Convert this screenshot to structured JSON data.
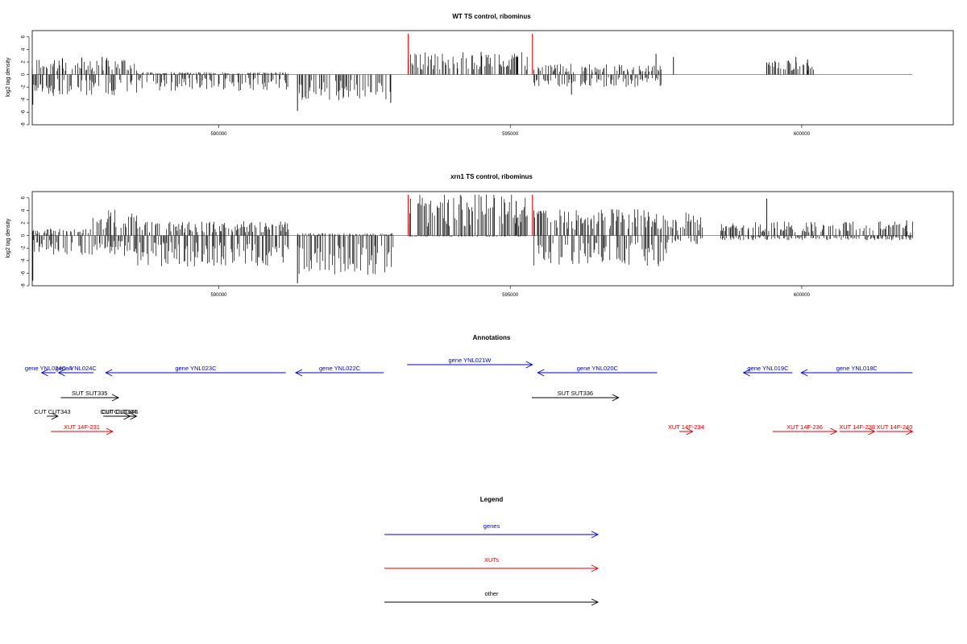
{
  "colors": {
    "genes": "#0000cc",
    "xuts": "#dd0000",
    "other": "#000000",
    "marker": "#ff0000",
    "baseline": "#888888"
  },
  "chart_data": [
    {
      "type": "bar",
      "title": "WT TS control, ribominus",
      "ylabel": "log2 tag density",
      "xticks": [
        "590000",
        "595000",
        "600000"
      ],
      "yticks": [
        "-8",
        "-6",
        "-4",
        "-2",
        "0",
        "2",
        "4",
        "6"
      ],
      "ylim": [
        -8,
        7
      ],
      "xlim": [
        586800,
        602600
      ],
      "x_start": 586800,
      "x_end": 601900,
      "markers_x": [
        593250,
        595380
      ],
      "profile": [
        {
          "range": [
            586800,
            588600
          ],
          "neg": 1.8,
          "pos": 1.3
        },
        {
          "range": [
            588600,
            591200
          ],
          "neg": 1.4,
          "pos": 0.2
        },
        {
          "range": [
            591350,
            593000
          ],
          "neg": 2.2,
          "pos": 0
        },
        {
          "range": [
            593250,
            595300
          ],
          "neg": 0,
          "pos": 1.9
        },
        {
          "range": [
            595400,
            597600
          ],
          "neg": 1.1,
          "pos": 0.9
        },
        {
          "range": [
            599400,
            600200
          ],
          "neg": 0,
          "pos": 1.2
        }
      ],
      "spikes": [
        [
          586810,
          -4.8
        ],
        [
          587320,
          2.6
        ],
        [
          587650,
          2.7
        ],
        [
          588000,
          2.8
        ],
        [
          588080,
          2.6
        ],
        [
          591350,
          -5.8
        ],
        [
          592950,
          -4.5
        ],
        [
          593250,
          2.4
        ],
        [
          594500,
          3.6
        ],
        [
          595120,
          3.0
        ],
        [
          596050,
          -3.2
        ],
        [
          597500,
          3.3
        ],
        [
          597800,
          2.8
        ],
        [
          599400,
          1.9
        ],
        [
          599900,
          2.8
        ],
        [
          600100,
          2.4
        ]
      ]
    },
    {
      "type": "bar",
      "title": "xrn1 TS control, ribominus",
      "ylabel": "log2 tag density",
      "xticks": [
        "590000",
        "595000",
        "600000"
      ],
      "yticks": [
        "-8",
        "-6",
        "-4",
        "-2",
        "0",
        "2",
        "4",
        "6"
      ],
      "ylim": [
        -8,
        7
      ],
      "xlim": [
        586800,
        602600
      ],
      "x_start": 586800,
      "x_end": 601900,
      "markers_x": [
        593250,
        595380
      ],
      "profile": [
        {
          "range": [
            586800,
            587800
          ],
          "neg": 1.6,
          "pos": 0.6
        },
        {
          "range": [
            587800,
            588600
          ],
          "neg": 1.8,
          "pos": 2.2
        },
        {
          "range": [
            588600,
            591200
          ],
          "neg": 2.6,
          "pos": 1.2
        },
        {
          "range": [
            591350,
            593000
          ],
          "neg": 3.3,
          "pos": 0.2
        },
        {
          "range": [
            593250,
            595300
          ],
          "neg": 0.1,
          "pos": 3.6
        },
        {
          "range": [
            595400,
            597700
          ],
          "neg": 2.6,
          "pos": 2.2
        },
        {
          "range": [
            597700,
            598300
          ],
          "neg": 0.8,
          "pos": 2.0
        },
        {
          "range": [
            598600,
            601900
          ],
          "neg": 0.4,
          "pos": 1.2
        }
      ],
      "spikes": [
        [
          586810,
          -7.2
        ],
        [
          591350,
          -7.6
        ],
        [
          594500,
          6.2
        ],
        [
          595100,
          5.5
        ],
        [
          599400,
          5.9
        ],
        [
          601800,
          2.4
        ]
      ]
    }
  ],
  "annotations": {
    "title": "Annotations",
    "items": [
      {
        "label": "gene YNL024C-A",
        "start": 586960,
        "end": 587200,
        "strand": "-",
        "row": 0,
        "color": "genes"
      },
      {
        "label": "gene YNL024C",
        "start": 587250,
        "end": 587850,
        "strand": "-",
        "row": 0,
        "color": "genes"
      },
      {
        "label": "gene YNL023C",
        "start": 588060,
        "end": 591150,
        "strand": "-",
        "row": 0,
        "color": "genes"
      },
      {
        "label": "gene YNL022C",
        "start": 591320,
        "end": 592830,
        "strand": "-",
        "row": 0,
        "color": "genes"
      },
      {
        "label": "gene YNL021W",
        "start": 593230,
        "end": 595380,
        "strand": "+",
        "row": -1,
        "color": "genes"
      },
      {
        "label": "gene YNL020C",
        "start": 595470,
        "end": 597520,
        "strand": "-",
        "row": 0,
        "color": "genes"
      },
      {
        "label": "gene YNL019C",
        "start": 599000,
        "end": 599840,
        "strand": "-",
        "row": 0,
        "color": "genes"
      },
      {
        "label": "gene YNL018C",
        "start": 599990,
        "end": 601900,
        "strand": "-",
        "row": 0,
        "color": "genes"
      },
      {
        "label": "SUT SUT335",
        "start": 587290,
        "end": 588280,
        "strand": "+",
        "row": 1,
        "color": "other"
      },
      {
        "label": "SUT SUT336",
        "start": 595370,
        "end": 596860,
        "strand": "+",
        "row": 1,
        "color": "other"
      },
      {
        "label": "CUT CUT343",
        "start": 587050,
        "end": 587240,
        "strand": "+",
        "row": 2,
        "color": "other"
      },
      {
        "label": "CUT CUT344",
        "start": 588080,
        "end": 588480,
        "strand": "+",
        "row": 2,
        "color": "other"
      },
      {
        "label": "CUT CUT345",
        "start": 588020,
        "end": 588590,
        "strand": "+",
        "row": 2,
        "color": "other"
      },
      {
        "label": "XUT 14F-231",
        "start": 587120,
        "end": 588180,
        "strand": "+",
        "row": 3,
        "color": "xuts"
      },
      {
        "label": "XUT 14F-234",
        "start": 597900,
        "end": 598130,
        "strand": "+",
        "row": 3,
        "color": "xuts"
      },
      {
        "label": "XUT 14F-236",
        "start": 599500,
        "end": 600600,
        "strand": "+",
        "row": 3,
        "color": "xuts"
      },
      {
        "label": "XUT 14F-238",
        "start": 600650,
        "end": 601250,
        "strand": "+",
        "row": 3,
        "color": "xuts"
      },
      {
        "label": "XUT 14F-240",
        "start": 601280,
        "end": 601900,
        "strand": "+",
        "row": 3,
        "color": "xuts"
      }
    ]
  },
  "legend": {
    "title": "Legend",
    "entries": [
      {
        "label": "genes",
        "color": "genes"
      },
      {
        "label": "XUTs",
        "color": "xuts"
      },
      {
        "label": "other",
        "color": "other"
      }
    ]
  }
}
